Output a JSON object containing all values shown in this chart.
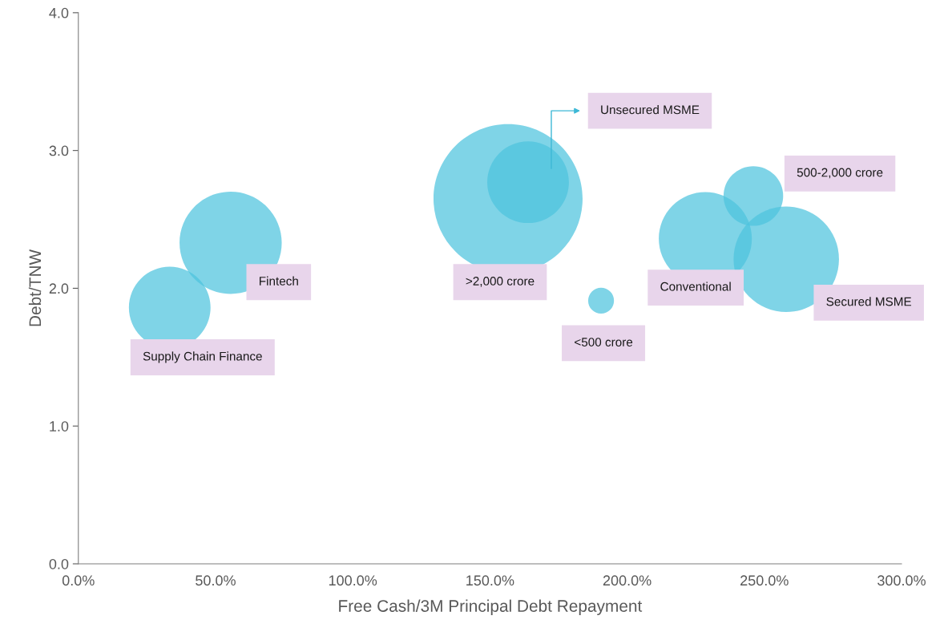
{
  "chart_data": {
    "type": "bubble",
    "xlabel": "Free Cash/3M Principal Debt Repayment",
    "ylabel": "Debt/TNW",
    "x": [
      33.3,
      55.5,
      156.6,
      163.9,
      190.5,
      228.5,
      246,
      258
    ],
    "values": [
      1.86,
      2.33,
      2.65,
      2.77,
      1.91,
      2.36,
      2.67,
      2.21
    ],
    "sizes": [
      0.3,
      0.47,
      1,
      0.3,
      0.03,
      0.39,
      0.16,
      0.5
    ],
    "color": "#4ec3de",
    "xlim": [
      0,
      300
    ],
    "xticks": [
      {
        "value": 0,
        "label": "0.0%"
      },
      {
        "value": 50,
        "label": "50.0%"
      },
      {
        "value": 100,
        "label": "100.0%"
      },
      {
        "value": 150,
        "label": "150.0%"
      },
      {
        "value": 200,
        "label": "200.0%"
      },
      {
        "value": 250,
        "label": "250.0%"
      },
      {
        "value": 300,
        "label": "300.0%"
      }
    ],
    "ylim": [
      0,
      4
    ],
    "yticks": [
      {
        "value": 0,
        "label": "0.0"
      },
      {
        "value": 1,
        "label": "1.0"
      },
      {
        "value": 2,
        "label": "2.0"
      },
      {
        "value": 3,
        "label": "3.0"
      },
      {
        "value": 4,
        "label": "4.0"
      }
    ],
    "grid": false,
    "legend": false,
    "annotations": [
      "Supply Chain Finance",
      "Fintech",
      ">2,000 crore",
      "Unsecured MSME",
      "<500 crore",
      "Conventional",
      "500-2,000 crore",
      "Secured MSME"
    ]
  }
}
